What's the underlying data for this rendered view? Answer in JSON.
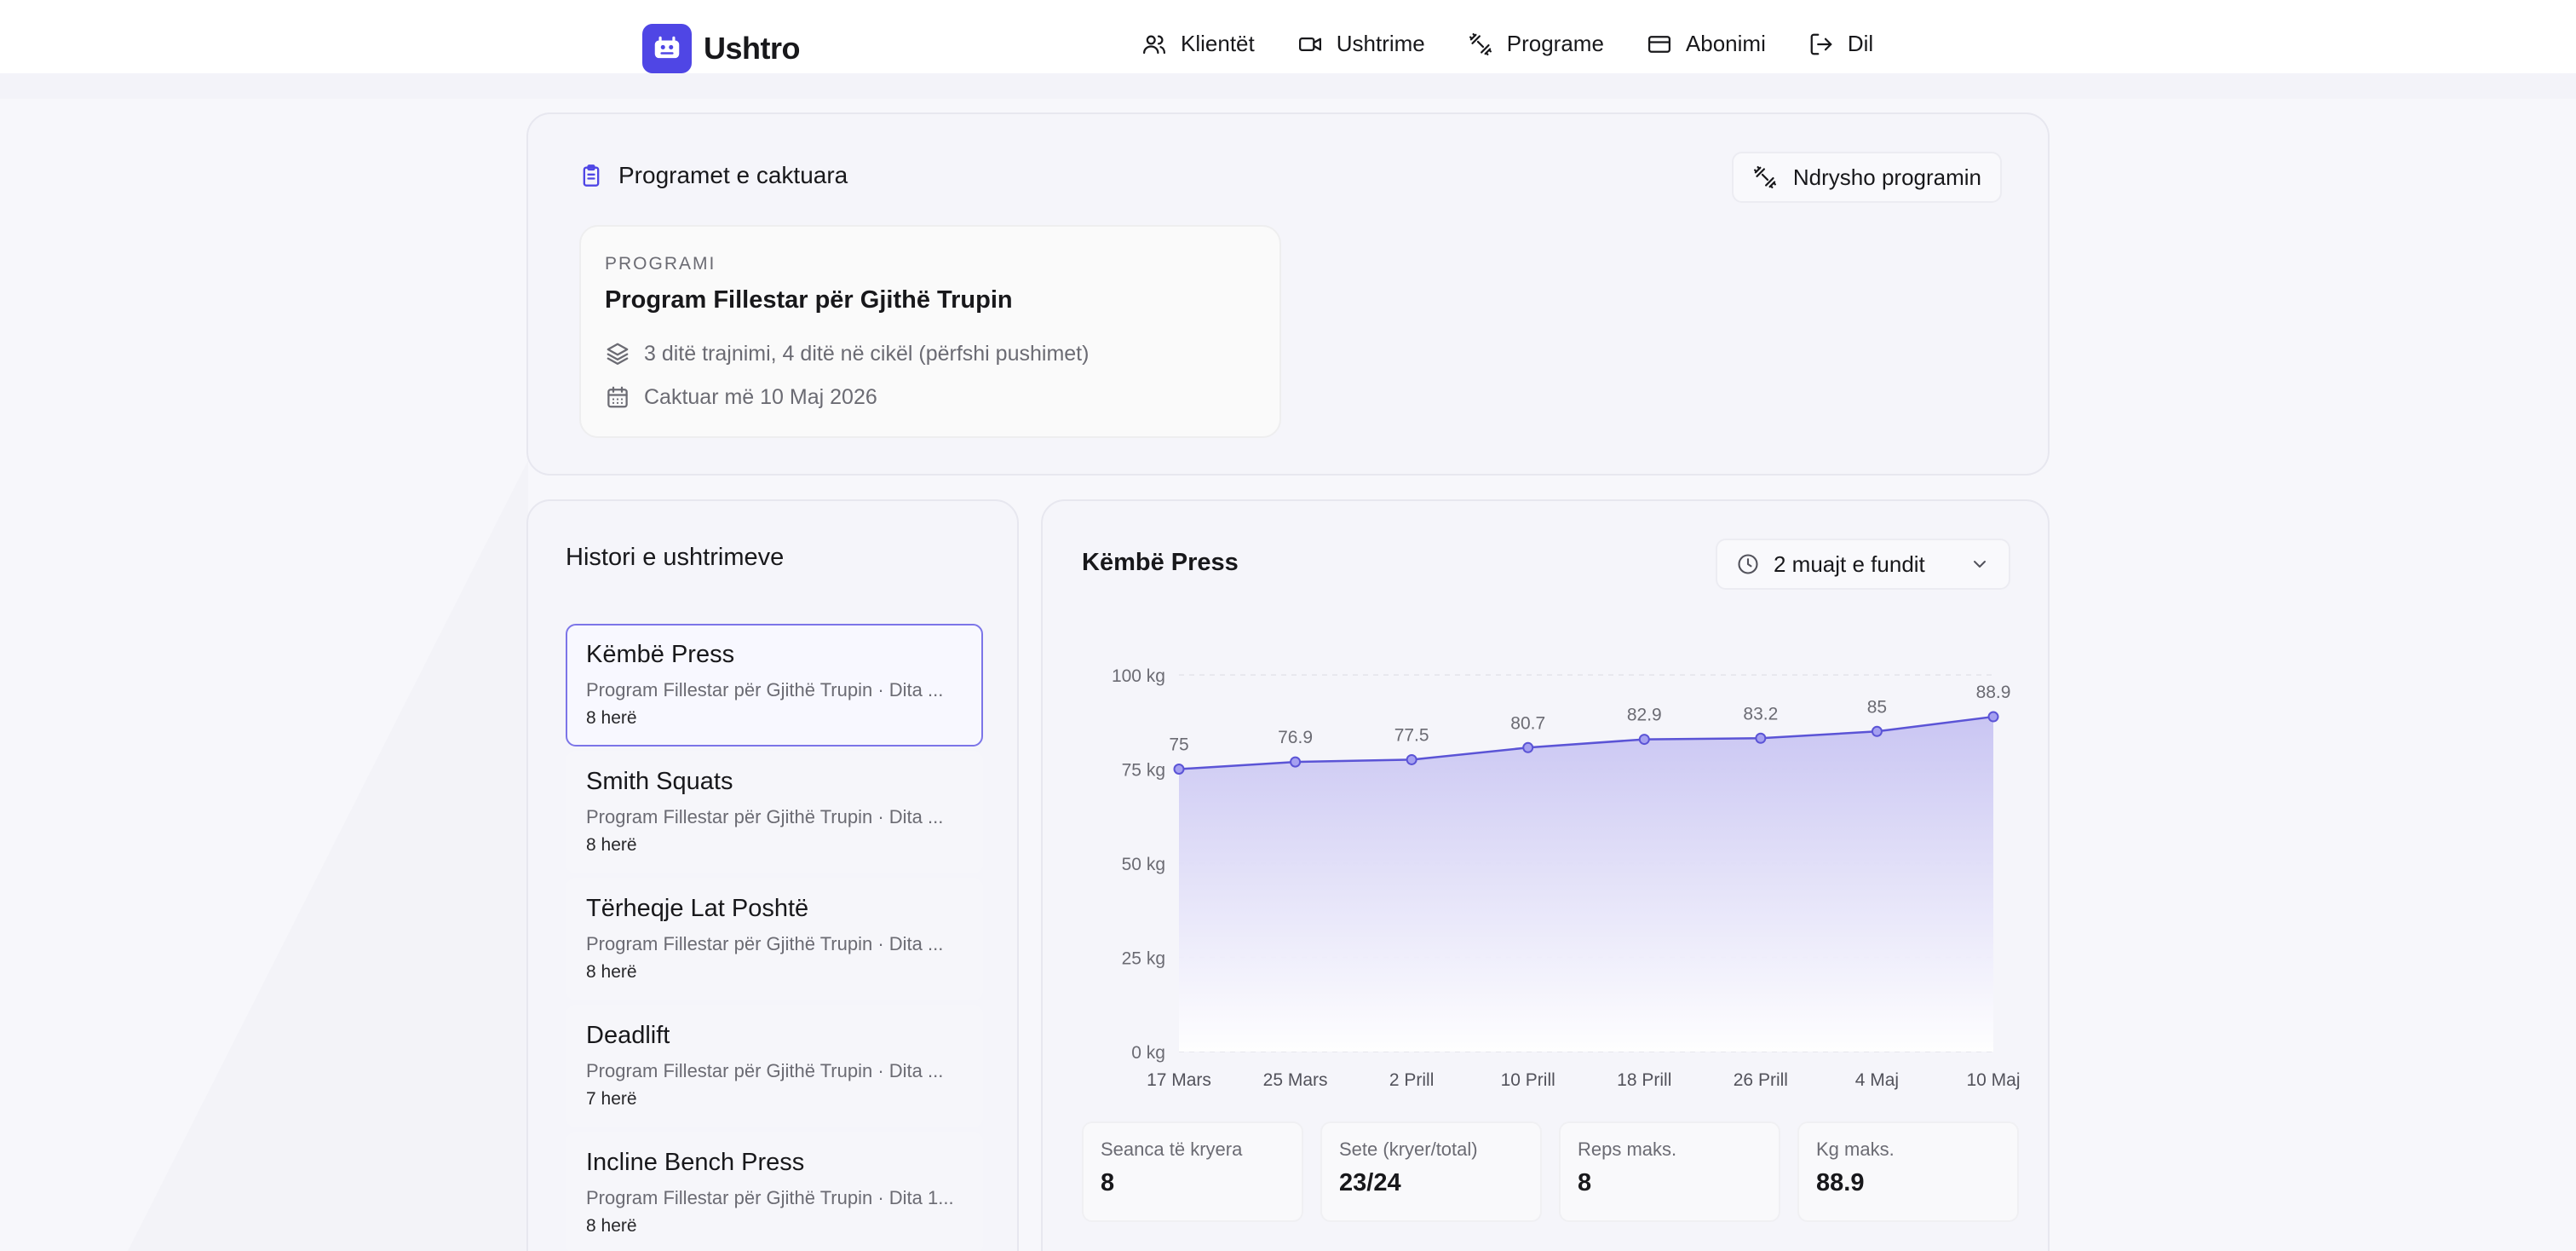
{
  "app": {
    "brand": "Ushtro",
    "nav": [
      {
        "label": "Klientët",
        "icon": "users-icon"
      },
      {
        "label": "Ushtrime",
        "icon": "video-icon"
      },
      {
        "label": "Programe",
        "icon": "dumbbell-icon"
      },
      {
        "label": "Abonimi",
        "icon": "credit-card-icon"
      },
      {
        "label": "Dil",
        "icon": "logout-icon"
      }
    ]
  },
  "programs": {
    "title": "Programet e caktuara",
    "change_button": "Ndrysho programin",
    "eyebrow": "PROGRAMI",
    "name": "Program Fillestar për Gjithë Trupin",
    "cycle": "3 ditë trajnimi, 4 ditë në cikël (përfshi pushimet)",
    "assigned": "Caktuar më 10 Maj 2026"
  },
  "history": {
    "title": "Histori e ushtrimeve",
    "items": [
      {
        "name": "Këmbë Press",
        "sub": "Program Fillestar për Gjithë Trupin · Dita ...",
        "count": "8 herë"
      },
      {
        "name": "Smith Squats",
        "sub": "Program Fillestar për Gjithë Trupin · Dita ...",
        "count": "8 herë"
      },
      {
        "name": "Tërheqje Lat Poshtë",
        "sub": "Program Fillestar për Gjithë Trupin · Dita ...",
        "count": "8 herë"
      },
      {
        "name": "Deadlift",
        "sub": "Program Fillestar për Gjithë Trupin · Dita ...",
        "count": "7 herë"
      },
      {
        "name": "Incline Bench Press",
        "sub": "Program Fillestar për Gjithë Trupin · Dita 1...",
        "count": "8 herë"
      }
    ]
  },
  "detail": {
    "exercise": "Këmbë Press",
    "range": "2 muajt e fundit",
    "stats": [
      {
        "label": "Seanca të kryera",
        "value": "8"
      },
      {
        "label": "Sete (kryer/total)",
        "value": "23/24"
      },
      {
        "label": "Reps maks.",
        "value": "8"
      },
      {
        "label": "Kg maks.",
        "value": "88.9"
      }
    ]
  },
  "colors": {
    "accent": "#4f46e5",
    "line": "#5b54d6",
    "area": "#c7c3f2"
  },
  "chart_data": {
    "type": "area",
    "categories": [
      "17 Mars",
      "25 Mars",
      "2 Prill",
      "10 Prill",
      "18 Prill",
      "26 Prill",
      "4 Maj",
      "10 Maj"
    ],
    "values": [
      75,
      76.9,
      77.5,
      80.7,
      82.9,
      83.2,
      85,
      88.9
    ],
    "yticks": [
      "0 kg",
      "25 kg",
      "50 kg",
      "75 kg",
      "100 kg"
    ],
    "ylim": [
      0,
      100
    ],
    "grid": true,
    "data_labels": true
  }
}
